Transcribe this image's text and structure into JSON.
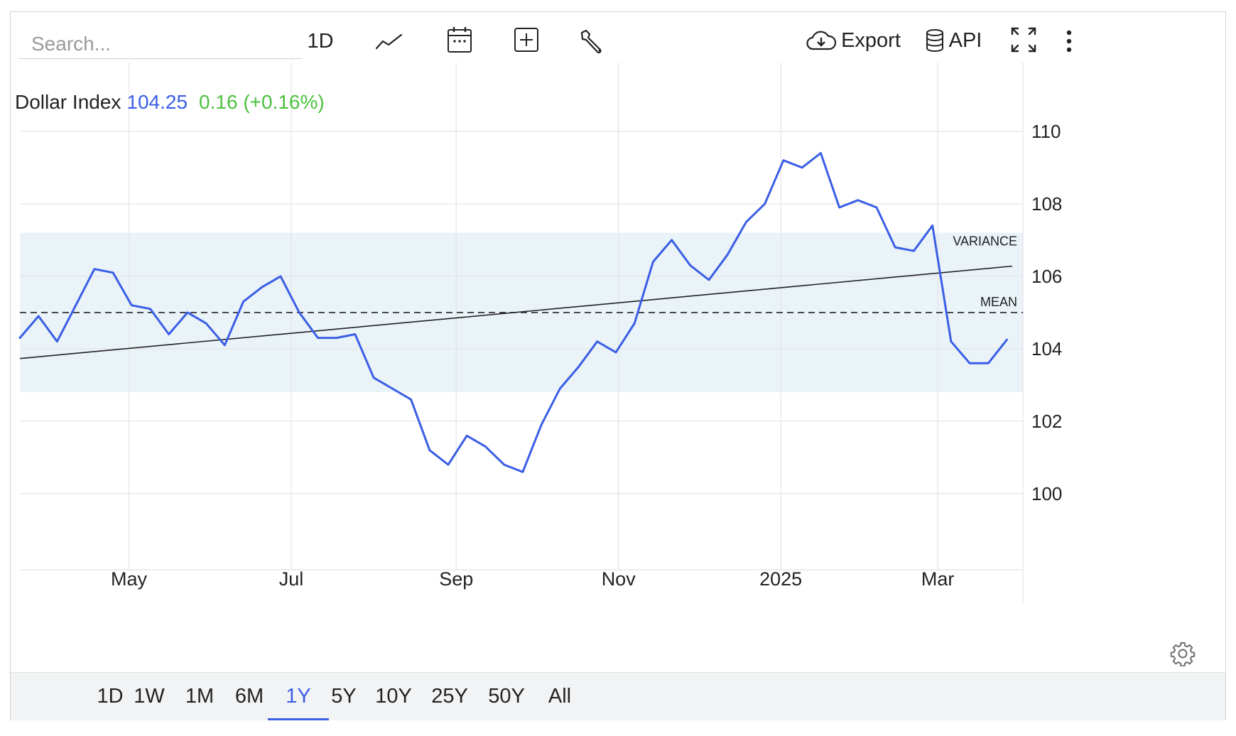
{
  "toolbar": {
    "search_placeholder": "Search...",
    "interval_label": "1D",
    "export_label": "Export",
    "api_label": "API"
  },
  "header": {
    "name": "Dollar Index",
    "price": "104.25",
    "change": "0.16 (+0.16%)"
  },
  "ranges": [
    "1D",
    "1W",
    "1M",
    "6M",
    "1Y",
    "5Y",
    "10Y",
    "25Y",
    "50Y",
    "All"
  ],
  "active_range": "1Y",
  "colors": {
    "series": "#3a5ee6",
    "positive": "#4cc13f",
    "band": "#eaf3f8",
    "grid": "#e4e4e4",
    "range_bar_bg": "#f2f3f4"
  },
  "icons": [
    "line-chart-icon",
    "calendar-icon",
    "add-indicator-icon",
    "wrench-icon",
    "cloud-download-icon",
    "database-icon",
    "fullscreen-icon",
    "more-vertical-icon",
    "gear-icon"
  ],
  "chart_data": {
    "type": "line",
    "title": "Dollar Index",
    "xlabel": "",
    "ylabel": "",
    "x_tick_labels": [
      "May",
      "Jul",
      "Sep",
      "Nov",
      "2025",
      "Mar"
    ],
    "x_ticks": [
      "2024-05-01",
      "2024-07-01",
      "2024-09-01",
      "2024-11-01",
      "2025-01-01",
      "2025-03-01"
    ],
    "y_ticks": [
      100,
      102,
      104,
      106,
      108,
      110
    ],
    "ylim": [
      97.9,
      111.9
    ],
    "xlim": [
      "2024-03-21",
      "2025-04-02"
    ],
    "grid": true,
    "series": [
      {
        "name": "Dollar Index",
        "color": "#3a5ee6",
        "x": [
          "2024-03-21",
          "2024-03-28",
          "2024-04-04",
          "2024-04-11",
          "2024-04-18",
          "2024-04-25",
          "2024-05-02",
          "2024-05-09",
          "2024-05-16",
          "2024-05-23",
          "2024-05-30",
          "2024-06-06",
          "2024-06-13",
          "2024-06-20",
          "2024-06-27",
          "2024-07-04",
          "2024-07-11",
          "2024-07-18",
          "2024-07-25",
          "2024-08-01",
          "2024-08-08",
          "2024-08-15",
          "2024-08-22",
          "2024-08-29",
          "2024-09-05",
          "2024-09-12",
          "2024-09-19",
          "2024-09-26",
          "2024-10-03",
          "2024-10-10",
          "2024-10-17",
          "2024-10-24",
          "2024-10-31",
          "2024-11-07",
          "2024-11-14",
          "2024-11-21",
          "2024-11-28",
          "2024-12-05",
          "2024-12-12",
          "2024-12-19",
          "2024-12-26",
          "2025-01-02",
          "2025-01-09",
          "2025-01-16",
          "2025-01-23",
          "2025-01-30",
          "2025-02-06",
          "2025-02-13",
          "2025-02-20",
          "2025-02-27",
          "2025-03-06",
          "2025-03-13",
          "2025-03-20",
          "2025-03-27"
        ],
        "values": [
          104.3,
          104.9,
          104.2,
          105.2,
          106.2,
          106.1,
          105.2,
          105.1,
          104.4,
          105.0,
          104.7,
          104.1,
          105.3,
          105.7,
          106.0,
          105.0,
          104.3,
          104.3,
          104.4,
          103.2,
          102.9,
          102.6,
          101.2,
          100.8,
          101.6,
          101.3,
          100.8,
          100.6,
          101.9,
          102.9,
          103.5,
          104.2,
          103.9,
          104.7,
          106.4,
          107.0,
          106.3,
          105.9,
          106.6,
          107.5,
          108.0,
          109.2,
          109.0,
          109.4,
          107.9,
          108.1,
          107.9,
          106.8,
          106.7,
          107.4,
          104.2,
          103.6,
          103.6,
          104.25
        ],
        "current_value": 104.25
      }
    ],
    "annotations": {
      "mean": {
        "label": "MEAN",
        "value": 105.0
      },
      "variance_band": {
        "label": "VARIANCE",
        "range": [
          102.8,
          107.2
        ]
      },
      "trend_line": {
        "start": [
          "2024-03-21",
          103.73
        ],
        "end": [
          "2025-03-29",
          106.28
        ]
      }
    }
  }
}
